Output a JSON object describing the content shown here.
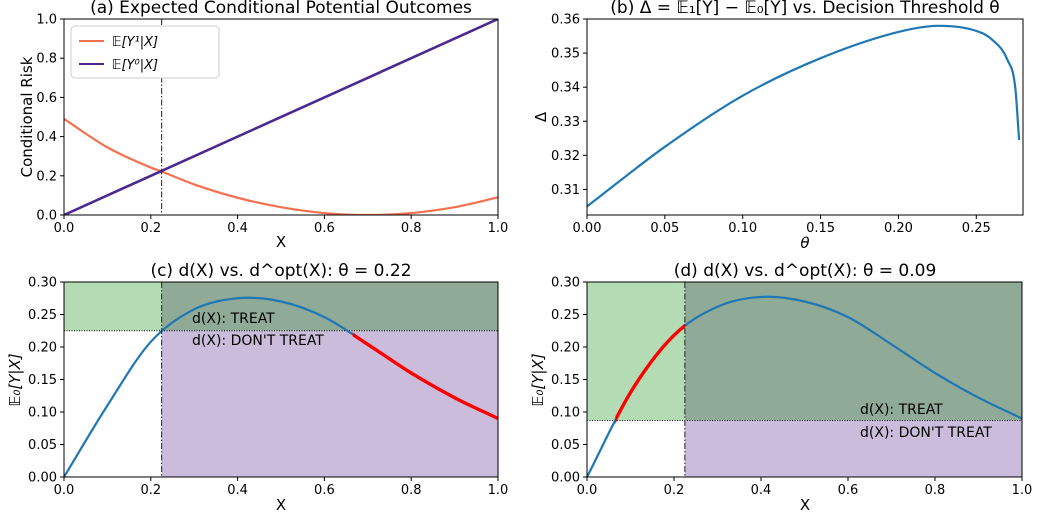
{
  "chart_data": [
    {
      "type": "line",
      "title": "(a) Expected Conditional Potential Outcomes",
      "xlabel": "X",
      "ylabel": "Conditional Risk",
      "xlim": [
        0,
        1
      ],
      "ylim": [
        0,
        1
      ],
      "xticks": [
        "0.0",
        "0.2",
        "0.4",
        "0.6",
        "0.8",
        "1.0"
      ],
      "yticks": [
        "0.0",
        "0.2",
        "0.4",
        "0.6",
        "0.8",
        "1.0"
      ],
      "legend": "top-left",
      "grid": false,
      "vline_x": 0.225,
      "series": [
        {
          "name": "𝔼[Y¹|X]",
          "color": "#f4714f",
          "x": [
            0,
            0.1,
            0.2,
            0.225,
            0.3,
            0.4,
            0.5,
            0.6,
            0.7,
            0.8,
            0.9,
            1.0
          ],
          "values": [
            0.49,
            0.345,
            0.242,
            0.222,
            0.156,
            0.088,
            0.04,
            0.01,
            0.0,
            0.01,
            0.04,
            0.09
          ]
        },
        {
          "name": "𝔼[Y⁰|X]",
          "color": "#4b2991",
          "x": [
            0,
            1
          ],
          "values": [
            0,
            1
          ]
        }
      ]
    },
    {
      "type": "line",
      "title": "(b) Δ = 𝔼₁[Y] − 𝔼₀[Y] vs. Decision Threshold θ",
      "xlabel": "θ",
      "ylabel": "Δ",
      "xlim": [
        0,
        0.28
      ],
      "ylim": [
        0.3025,
        0.36
      ],
      "xticks": [
        "0.00",
        "0.05",
        "0.10",
        "0.15",
        "0.20",
        "0.25"
      ],
      "yticks": [
        "0.31",
        "0.32",
        "0.33",
        "0.34",
        "0.35",
        "0.36"
      ],
      "grid": false,
      "series": [
        {
          "color": "#1f77b4",
          "x": [
            0,
            0.05,
            0.1,
            0.15,
            0.2,
            0.225,
            0.25,
            0.26,
            0.27,
            0.275,
            0.2775
          ],
          "values": [
            0.305,
            0.3225,
            0.3375,
            0.3485,
            0.3562,
            0.358,
            0.3565,
            0.354,
            0.348,
            0.34,
            0.3245
          ]
        }
      ]
    },
    {
      "type": "line",
      "title": "(c) d(X) vs. d^opt(X): θ = 0.22",
      "xlabel": "X",
      "ylabel": "𝔼₀[Y|X]",
      "xlim": [
        0,
        1
      ],
      "ylim": [
        0,
        0.3
      ],
      "xticks": [
        "0.0",
        "0.2",
        "0.4",
        "0.6",
        "0.8",
        "1.0"
      ],
      "yticks": [
        "0.00",
        "0.05",
        "0.10",
        "0.15",
        "0.20",
        "0.25",
        "0.30"
      ],
      "grid": false,
      "threshold": 0.225,
      "vline_x": 0.225,
      "highlight_x_range": [
        0.665,
        1.0
      ],
      "annotations": [
        "d(X): TREAT",
        "d(X): DON'T TREAT"
      ],
      "series": [
        {
          "color": "#1f77b4",
          "x": [
            0,
            0.1,
            0.2,
            0.3,
            0.4,
            0.5,
            0.6,
            0.7,
            0.8,
            0.9,
            1.0
          ],
          "values": [
            0.0,
            0.11,
            0.208,
            0.258,
            0.275,
            0.27,
            0.246,
            0.204,
            0.16,
            0.122,
            0.09
          ]
        }
      ]
    },
    {
      "type": "line",
      "title": "(d) d(X) vs. d^opt(X): θ = 0.09",
      "xlabel": "X",
      "ylabel": "𝔼₀[Y|X]",
      "xlim": [
        0,
        1
      ],
      "ylim": [
        0,
        0.3
      ],
      "xticks": [
        "0.0",
        "0.2",
        "0.4",
        "0.6",
        "0.8",
        "1.0"
      ],
      "yticks": [
        "0.00",
        "0.05",
        "0.10",
        "0.15",
        "0.20",
        "0.25",
        "0.30"
      ],
      "grid": false,
      "threshold": 0.087,
      "vline_x": 0.225,
      "highlight_x_range": [
        0.065,
        0.225
      ],
      "annotations": [
        "d(X): TREAT",
        "d(X): DON'T TREAT"
      ],
      "series": [
        {
          "color": "#1f77b4",
          "x": [
            0,
            0.1,
            0.2,
            0.3,
            0.4,
            0.5,
            0.6,
            0.7,
            0.8,
            0.9,
            1.0
          ],
          "values": [
            0.0,
            0.13,
            0.218,
            0.262,
            0.277,
            0.27,
            0.246,
            0.204,
            0.16,
            0.122,
            0.09
          ]
        }
      ]
    }
  ]
}
